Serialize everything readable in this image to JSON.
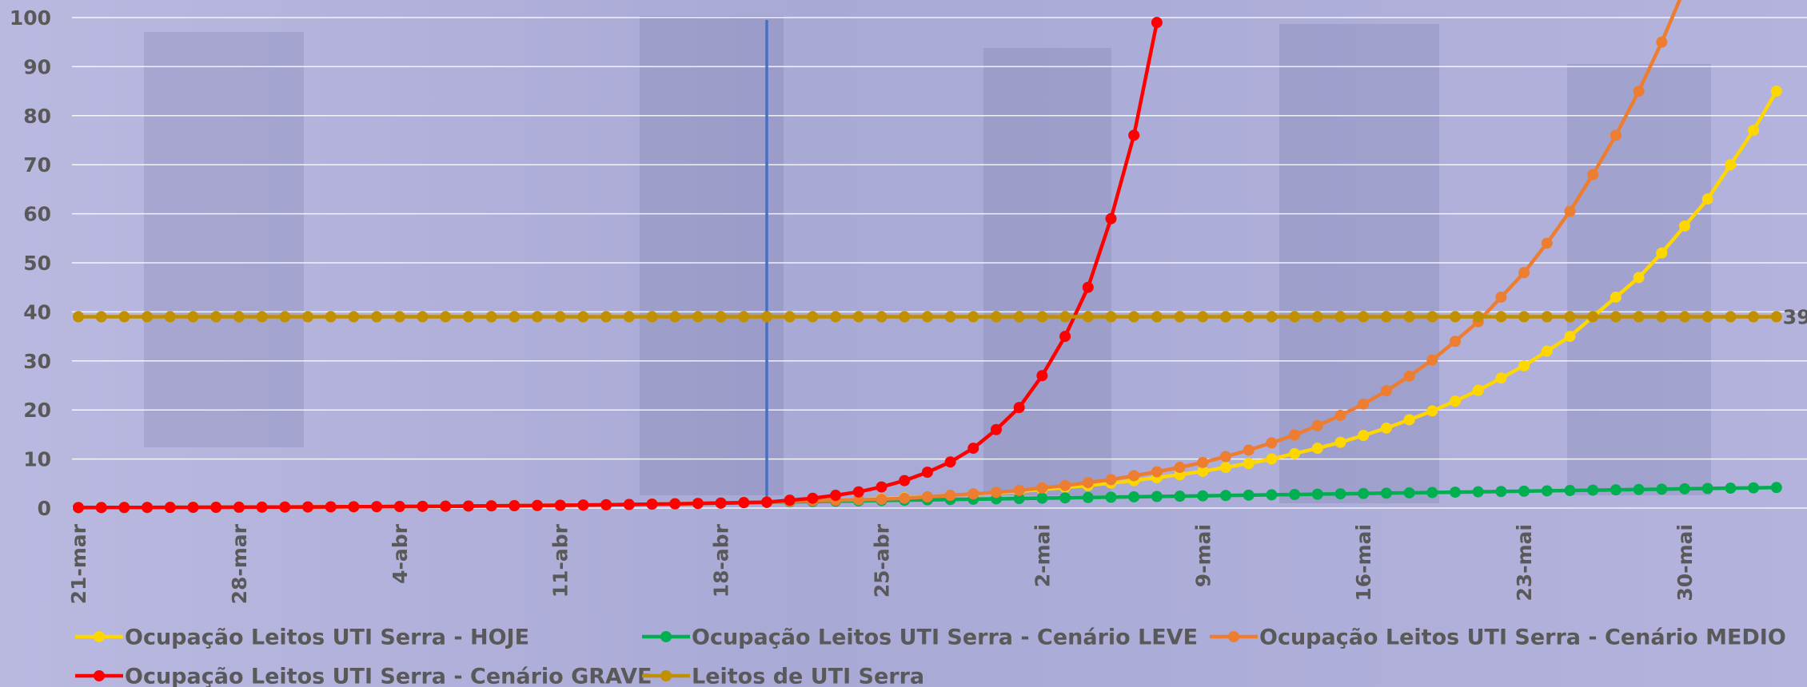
{
  "chart_data": {
    "type": "line",
    "categories": [
      "21-mar",
      null,
      null,
      null,
      null,
      null,
      null,
      "28-mar",
      null,
      null,
      null,
      null,
      null,
      null,
      "4-abr",
      null,
      null,
      null,
      null,
      null,
      null,
      "11-abr",
      null,
      null,
      null,
      null,
      null,
      null,
      "18-abr",
      null,
      null,
      null,
      null,
      null,
      null,
      "25-abr",
      null,
      null,
      null,
      null,
      null,
      null,
      "2-mai",
      null,
      null,
      null,
      null,
      null,
      null,
      "9-mai",
      null,
      null,
      null,
      null,
      null,
      null,
      "16-mai",
      null,
      null,
      null,
      null,
      null,
      null,
      "23-mai",
      null,
      null,
      null,
      null,
      null,
      null,
      "30-mai",
      null,
      null,
      null,
      null
    ],
    "ylim": [
      0,
      100
    ],
    "yticks": [
      0,
      10,
      20,
      30,
      40,
      50,
      60,
      70,
      80,
      90,
      100
    ],
    "grid": true,
    "vertical_line_index": 30,
    "vertical_line_color": "#4472c4",
    "series": [
      {
        "name": "Ocupação Leitos UTI Serra - HOJE",
        "color": "#ffd700",
        "values": [
          0.1,
          0.11,
          0.12,
          0.13,
          0.14,
          0.15,
          0.16,
          0.18,
          0.19,
          0.21,
          0.23,
          0.25,
          0.27,
          0.29,
          0.32,
          0.35,
          0.38,
          0.41,
          0.45,
          0.48,
          0.53,
          0.57,
          0.62,
          0.67,
          0.73,
          0.8,
          0.87,
          0.94,
          1.02,
          1.11,
          1.2,
          1.3,
          1.4,
          1.6,
          1.7,
          1.9,
          2.1,
          2.3,
          2.6,
          2.8,
          3.1,
          3.4,
          3.8,
          4.2,
          4.6,
          5.1,
          5.6,
          6.2,
          6.8,
          7.5,
          8.3,
          9.1,
          10,
          11.1,
          12.2,
          13.4,
          14.8,
          16.3,
          18,
          19.8,
          21.8,
          24,
          26.5,
          29,
          32,
          35,
          39,
          43,
          47,
          52,
          57.5,
          63,
          70,
          77,
          85
        ]
      },
      {
        "name": "Ocupação Leitos UTI Serra - Cenário LEVE",
        "color": "#00b050",
        "values": [
          0.1,
          0.11,
          0.12,
          0.13,
          0.14,
          0.15,
          0.16,
          0.18,
          0.19,
          0.21,
          0.23,
          0.25,
          0.27,
          0.29,
          0.32,
          0.35,
          0.38,
          0.41,
          0.45,
          0.48,
          0.53,
          0.57,
          0.62,
          0.67,
          0.73,
          0.8,
          0.87,
          0.94,
          1.02,
          1.11,
          1.2,
          1.27,
          1.34,
          1.4,
          1.47,
          1.54,
          1.61,
          1.68,
          1.74,
          1.81,
          1.88,
          1.95,
          2.02,
          2.08,
          2.15,
          2.22,
          2.29,
          2.36,
          2.42,
          2.49,
          2.56,
          2.63,
          2.7,
          2.76,
          2.83,
          2.9,
          2.97,
          3.04,
          3.1,
          3.17,
          3.24,
          3.31,
          3.38,
          3.44,
          3.51,
          3.58,
          3.65,
          3.72,
          3.78,
          3.85,
          3.92,
          3.99,
          4.06,
          4.12,
          4.19
        ]
      },
      {
        "name": "Ocupação Leitos UTI Serra - Cenário MEDIO",
        "color": "#ed7d31",
        "values": [
          0.1,
          0.11,
          0.12,
          0.13,
          0.14,
          0.15,
          0.16,
          0.18,
          0.19,
          0.21,
          0.23,
          0.25,
          0.27,
          0.29,
          0.32,
          0.35,
          0.38,
          0.41,
          0.45,
          0.48,
          0.53,
          0.57,
          0.62,
          0.67,
          0.73,
          0.8,
          0.87,
          0.94,
          1.02,
          1.11,
          1.2,
          1.35,
          1.5,
          1.6,
          1.7,
          1.8,
          2.0,
          2.3,
          2.6,
          2.9,
          3.2,
          3.6,
          4.1,
          4.6,
          5.2,
          5.8,
          6.6,
          7.4,
          8.3,
          9.3,
          10.5,
          11.8,
          13.3,
          14.9,
          16.8,
          18.9,
          21.2,
          23.9,
          26.9,
          30.2,
          34,
          38,
          43,
          48,
          54,
          60.5,
          68,
          76,
          85,
          95,
          106,
          null,
          null,
          null,
          null
        ]
      },
      {
        "name": "Ocupação Leitos UTI Serra - Cenário GRAVE",
        "color": "#ff0000",
        "values": [
          0.1,
          0.11,
          0.12,
          0.13,
          0.14,
          0.15,
          0.16,
          0.18,
          0.19,
          0.21,
          0.23,
          0.25,
          0.27,
          0.29,
          0.32,
          0.35,
          0.38,
          0.41,
          0.45,
          0.48,
          0.53,
          0.57,
          0.62,
          0.67,
          0.73,
          0.8,
          0.87,
          0.94,
          1.02,
          1.11,
          1.2,
          1.6,
          2.0,
          2.6,
          3.3,
          4.3,
          5.6,
          7.3,
          9.4,
          12.2,
          16,
          20.5,
          27,
          35,
          45,
          59,
          76,
          99,
          null,
          null,
          null,
          null,
          null,
          null,
          null,
          null,
          null,
          null,
          null,
          null,
          null,
          null,
          null,
          null,
          null,
          null,
          null,
          null,
          null,
          null,
          null,
          null,
          null,
          null,
          null
        ]
      },
      {
        "name": "Leitos de UTI Serra",
        "color": "#c09000",
        "end_label": true,
        "values": [
          39,
          39,
          39,
          39,
          39,
          39,
          39,
          39,
          39,
          39,
          39,
          39,
          39,
          39,
          39,
          39,
          39,
          39,
          39,
          39,
          39,
          39,
          39,
          39,
          39,
          39,
          39,
          39,
          39,
          39,
          39,
          39,
          39,
          39,
          39,
          39,
          39,
          39,
          39,
          39,
          39,
          39,
          39,
          39,
          39,
          39,
          39,
          39,
          39,
          39,
          39,
          39,
          39,
          39,
          39,
          39,
          39,
          39,
          39,
          39,
          39,
          39,
          39,
          39,
          39,
          39,
          39,
          39,
          39,
          39,
          39,
          39,
          39,
          39,
          39
        ]
      }
    ]
  }
}
